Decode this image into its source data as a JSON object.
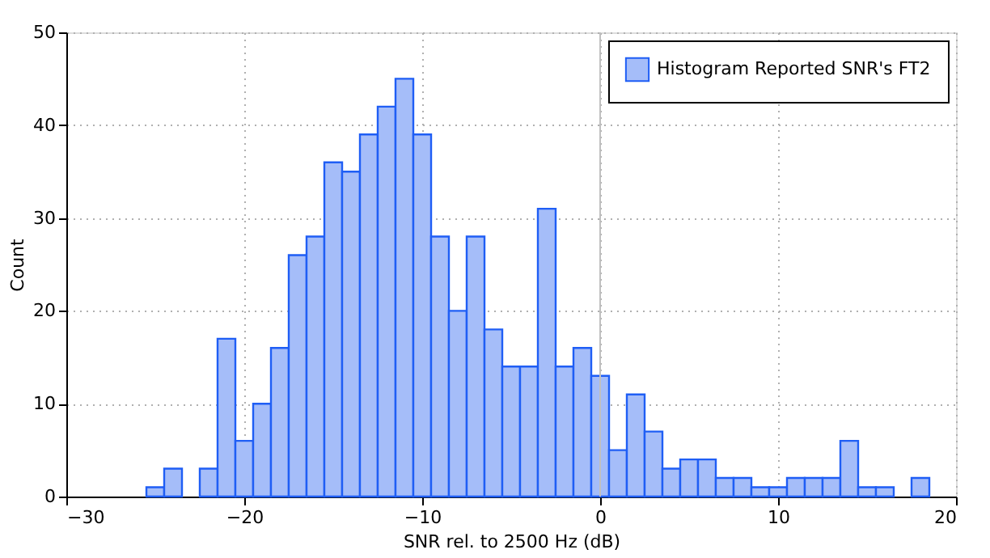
{
  "chart_data": {
    "type": "histogram",
    "xlabel": "SNR rel. to 2500 Hz (dB)",
    "ylabel": "Count",
    "bins": [
      -25.5,
      -24.5,
      -23.5,
      -22.5,
      -21.5,
      -20.5,
      -19.5,
      -18.5,
      -17.5,
      -16.5,
      -15.5,
      -14.5,
      -13.5,
      -12.5,
      -11.5,
      -10.5,
      -9.5,
      -8.5,
      -7.5,
      -6.5,
      -5.5,
      -4.5,
      -3.5,
      -2.5,
      -1.5,
      -0.5,
      0.5,
      1.5,
      2.5,
      3.5,
      4.5,
      5.5,
      6.5,
      7.5,
      8.5,
      9.5,
      10.5,
      11.5,
      12.5,
      13.5,
      14.5,
      15.5,
      16.5,
      17.5,
      18.5
    ],
    "series": [
      {
        "name": "Histogram Reported SNR's FT2",
        "color": "#a5bdf9",
        "values": [
          1,
          3,
          0,
          3,
          17,
          6,
          10,
          16,
          26,
          28,
          36,
          35,
          39,
          42,
          45,
          39,
          28,
          20,
          28,
          18,
          14,
          14,
          31,
          14,
          16,
          13,
          5,
          11,
          7,
          3,
          4,
          4,
          2,
          2,
          1,
          1,
          2,
          2,
          2,
          6,
          1,
          1,
          0,
          2
        ]
      }
    ],
    "xlim": [
      -30,
      20
    ],
    "xticks": [
      -30,
      -20,
      -10,
      0,
      10,
      20
    ],
    "ylim": [
      0,
      50
    ],
    "yticks": [
      0,
      10,
      20,
      30,
      40,
      50
    ],
    "grid": true,
    "legend": "top right",
    "ref_lines": [
      {
        "axis": "x",
        "value": 0,
        "color": "#c0c0c0"
      }
    ]
  }
}
